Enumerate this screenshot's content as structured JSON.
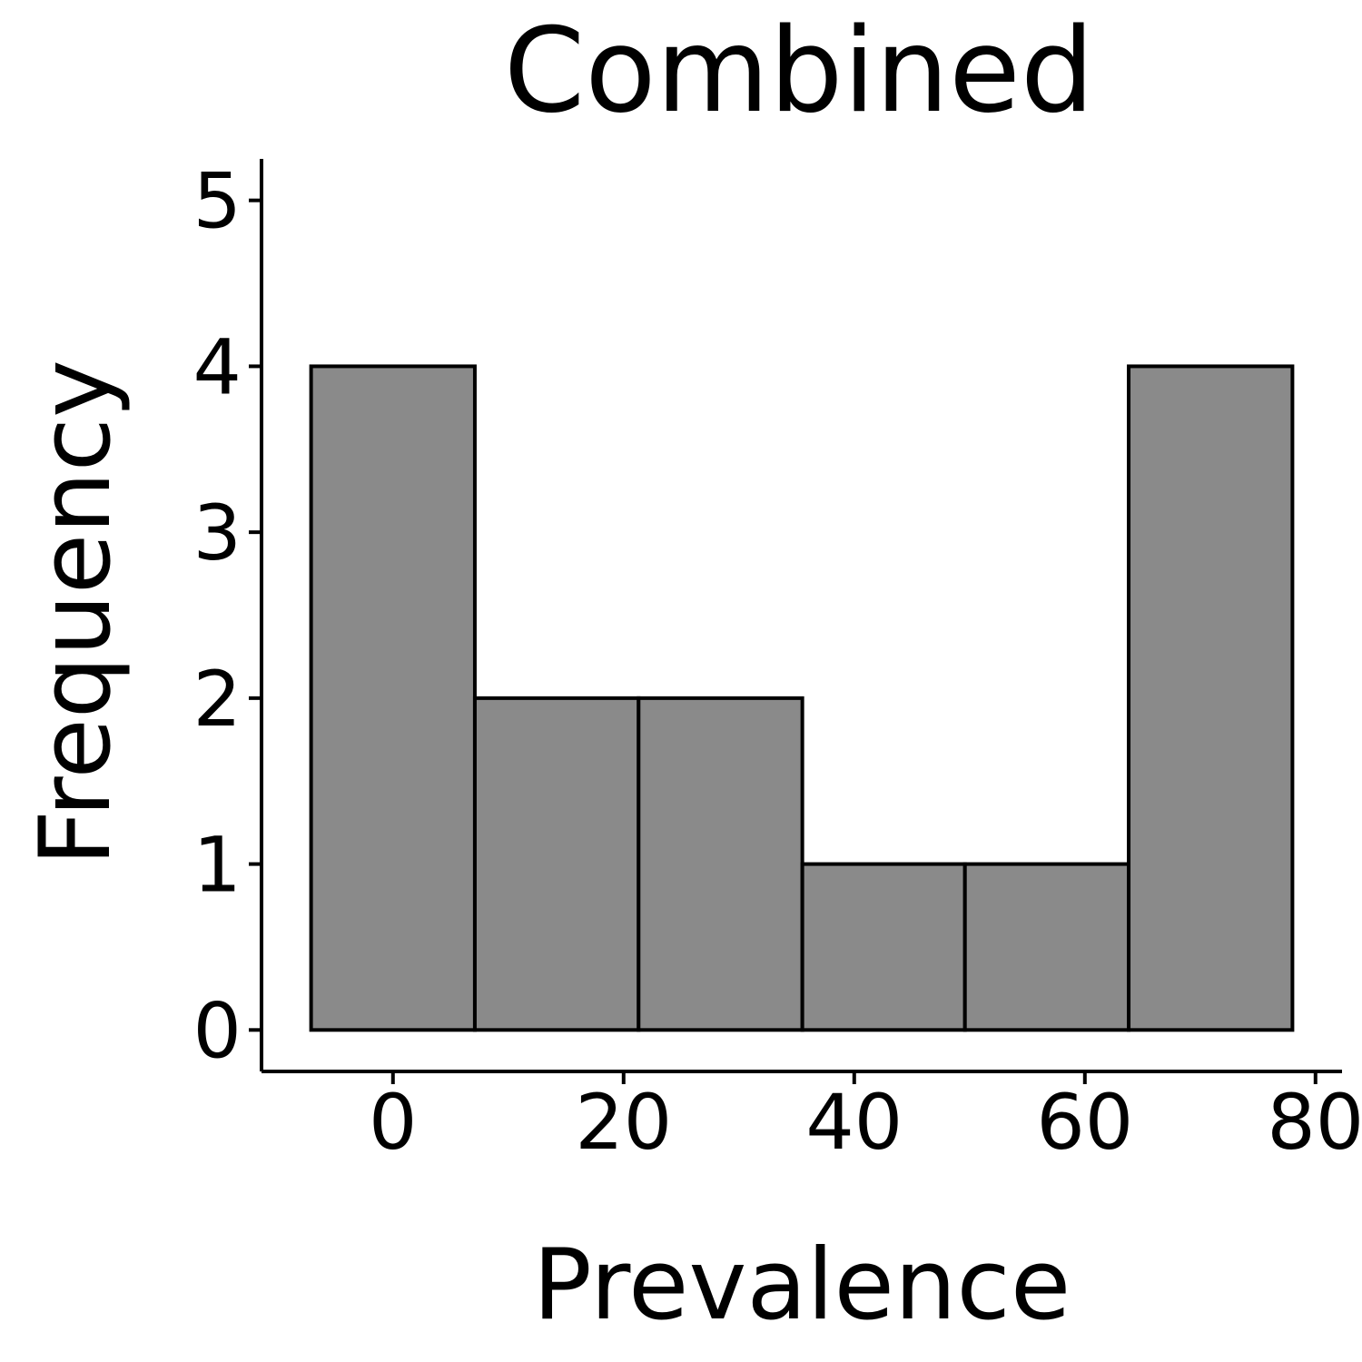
{
  "chart_data": {
    "type": "bar",
    "title": "Combined",
    "xlabel": "Prevalence",
    "ylabel": "Frequency",
    "bins": [
      {
        "x0": -7.1,
        "x1": 7.1,
        "count": 4
      },
      {
        "x0": 7.1,
        "x1": 21.3,
        "count": 2
      },
      {
        "x0": 21.3,
        "x1": 35.5,
        "count": 2
      },
      {
        "x0": 35.5,
        "x1": 49.6,
        "count": 1
      },
      {
        "x0": 49.6,
        "x1": 63.8,
        "count": 1
      },
      {
        "x0": 63.8,
        "x1": 78.0,
        "count": 4
      }
    ],
    "xlim": [
      -11.4,
      82.3
    ],
    "ylim": [
      -0.25,
      5.25
    ],
    "xticks": [
      0,
      20,
      40,
      60,
      80
    ],
    "yticks": [
      0,
      1,
      2,
      3,
      4,
      5
    ],
    "bar_color": "#8a8a8a",
    "edge_color": "#000000",
    "grid": false,
    "legend": "none"
  }
}
